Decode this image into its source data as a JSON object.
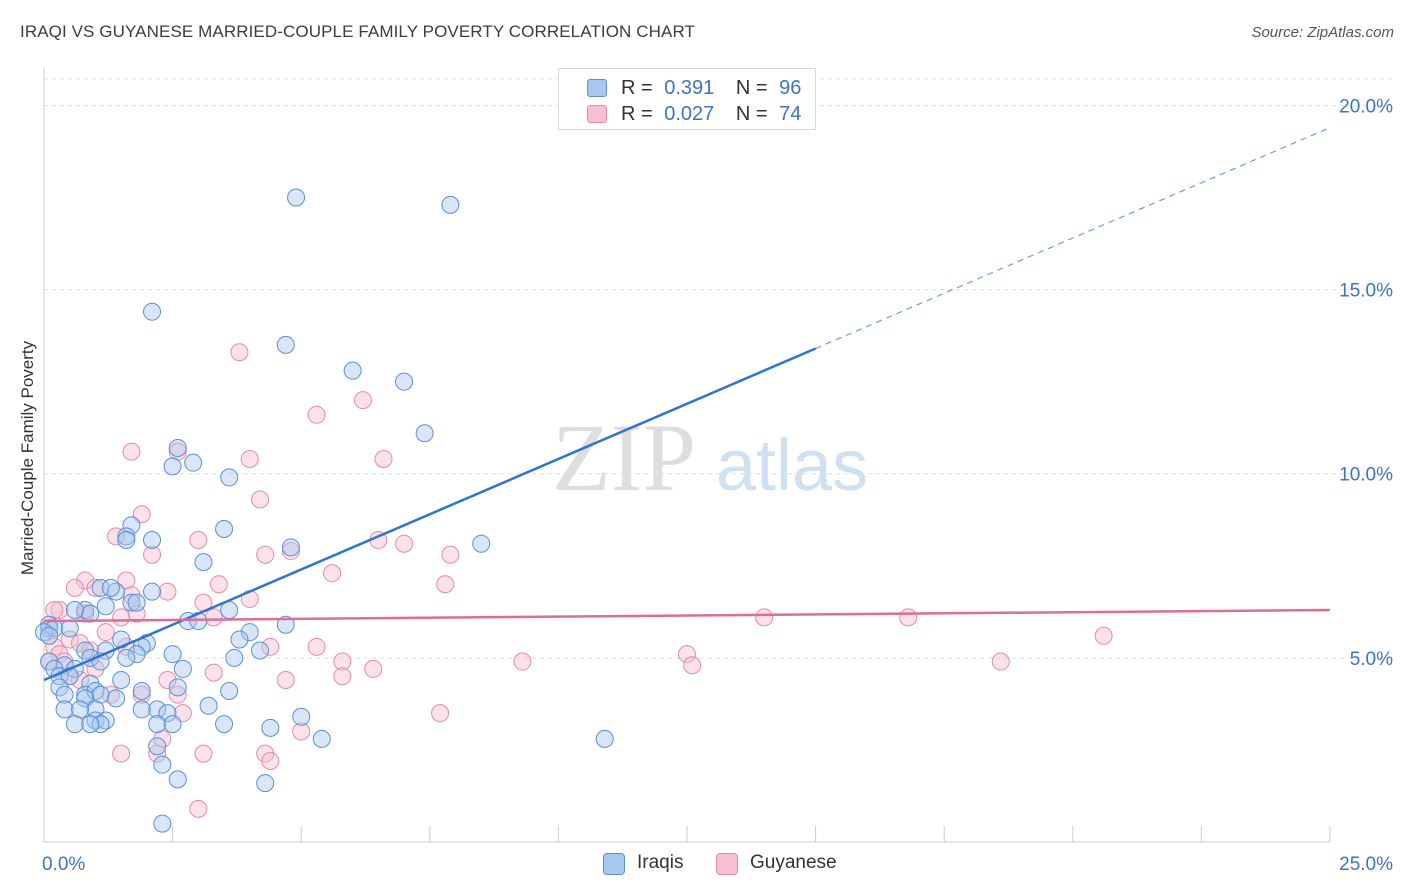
{
  "title": "IRAQI VS GUYANESE MARRIED-COUPLE FAMILY POVERTY CORRELATION CHART",
  "source": "Source: ZipAtlas.com",
  "watermark": {
    "zip": "ZIP",
    "atlas": "atlas"
  },
  "legend": {
    "iraqis": {
      "r_label": "R =",
      "r_value": "0.391",
      "n_label": "N =",
      "n_value": "96"
    },
    "guyanese": {
      "r_label": "R =",
      "r_value": "0.027",
      "n_label": "N =",
      "n_value": "74"
    }
  },
  "bottom_legend": {
    "iraqis": "Iraqis",
    "guyanese": "Guyanese"
  },
  "colors": {
    "iraqis_fill": "#a9c8f0",
    "iraqis_stroke": "#5b8fd6",
    "iraqis_line": "#2f74d0",
    "guyanese_fill": "#f7bfd0",
    "guyanese_stroke": "#e58aa8",
    "guyanese_line": "#e36a95",
    "grid": "#dddddd",
    "tick_label": "#3f72c4"
  },
  "chart_data": {
    "type": "scatter",
    "title": "IRAQI VS GUYANESE MARRIED-COUPLE FAMILY POVERTY CORRELATION CHART",
    "ylabel": "Married-Couple Family Poverty",
    "xlabel": "",
    "xlim": [
      0,
      25
    ],
    "ylim": [
      0,
      20.8
    ],
    "x_tick_labels": [
      {
        "value": 0,
        "label": "0.0%"
      },
      {
        "value": 25,
        "label": "25.0%"
      }
    ],
    "y_tick_labels": [
      {
        "value": 5,
        "label": "5.0%"
      },
      {
        "value": 10,
        "label": "10.0%"
      },
      {
        "value": 15,
        "label": "15.0%"
      },
      {
        "value": 20,
        "label": "20.0%"
      }
    ],
    "grid": true,
    "series": [
      {
        "name": "Iraqis",
        "points": [
          [
            4.9,
            17.5
          ],
          [
            7.9,
            17.3
          ],
          [
            2.1,
            14.4
          ],
          [
            4.7,
            13.5
          ],
          [
            6.0,
            12.8
          ],
          [
            7.0,
            12.5
          ],
          [
            7.4,
            11.1
          ],
          [
            2.6,
            10.7
          ],
          [
            2.5,
            10.2
          ],
          [
            2.9,
            10.3
          ],
          [
            3.6,
            9.9
          ],
          [
            1.7,
            8.6
          ],
          [
            3.5,
            8.5
          ],
          [
            1.6,
            8.3
          ],
          [
            2.1,
            8.2
          ],
          [
            1.6,
            8.2
          ],
          [
            4.8,
            8.0
          ],
          [
            8.5,
            8.1
          ],
          [
            3.1,
            7.6
          ],
          [
            1.1,
            6.9
          ],
          [
            2.1,
            6.8
          ],
          [
            1.4,
            6.8
          ],
          [
            1.7,
            6.5
          ],
          [
            1.8,
            6.5
          ],
          [
            1.2,
            6.4
          ],
          [
            0.8,
            6.3
          ],
          [
            0.9,
            6.2
          ],
          [
            3.6,
            6.3
          ],
          [
            2.8,
            6.0
          ],
          [
            4.7,
            5.9
          ],
          [
            0.1,
            5.9
          ],
          [
            0.1,
            5.8
          ],
          [
            0.2,
            5.8
          ],
          [
            0.5,
            5.8
          ],
          [
            0.0,
            5.7
          ],
          [
            4.0,
            5.7
          ],
          [
            0.1,
            5.6
          ],
          [
            1.5,
            5.5
          ],
          [
            3.8,
            5.5
          ],
          [
            2.0,
            5.4
          ],
          [
            1.9,
            5.3
          ],
          [
            0.8,
            5.2
          ],
          [
            1.2,
            5.2
          ],
          [
            4.2,
            5.2
          ],
          [
            1.8,
            5.1
          ],
          [
            2.5,
            5.1
          ],
          [
            1.6,
            5.0
          ],
          [
            0.9,
            5.0
          ],
          [
            1.1,
            4.9
          ],
          [
            3.7,
            5.0
          ],
          [
            0.1,
            4.9
          ],
          [
            0.4,
            4.8
          ],
          [
            0.6,
            4.7
          ],
          [
            0.2,
            4.7
          ],
          [
            2.7,
            4.7
          ],
          [
            0.3,
            4.5
          ],
          [
            0.5,
            4.5
          ],
          [
            1.5,
            4.4
          ],
          [
            0.3,
            4.2
          ],
          [
            2.6,
            4.2
          ],
          [
            0.9,
            4.3
          ],
          [
            3.6,
            4.1
          ],
          [
            0.4,
            4.0
          ],
          [
            1.9,
            4.1
          ],
          [
            0.8,
            4.0
          ],
          [
            1.0,
            4.1
          ],
          [
            1.1,
            4.0
          ],
          [
            0.8,
            3.9
          ],
          [
            1.4,
            3.9
          ],
          [
            2.2,
            3.6
          ],
          [
            3.2,
            3.7
          ],
          [
            1.0,
            3.6
          ],
          [
            0.4,
            3.6
          ],
          [
            0.7,
            3.6
          ],
          [
            1.9,
            3.6
          ],
          [
            2.4,
            3.5
          ],
          [
            1.0,
            3.3
          ],
          [
            0.6,
            3.2
          ],
          [
            1.2,
            3.3
          ],
          [
            1.1,
            3.2
          ],
          [
            0.9,
            3.2
          ],
          [
            2.2,
            3.2
          ],
          [
            2.5,
            3.2
          ],
          [
            3.5,
            3.2
          ],
          [
            4.4,
            3.1
          ],
          [
            5.0,
            3.4
          ],
          [
            5.4,
            2.8
          ],
          [
            10.9,
            2.8
          ],
          [
            2.2,
            2.6
          ],
          [
            2.3,
            2.1
          ],
          [
            2.6,
            1.7
          ],
          [
            4.3,
            1.6
          ],
          [
            2.3,
            0.5
          ],
          [
            1.3,
            6.9
          ],
          [
            3.0,
            6.0
          ],
          [
            0.6,
            6.3
          ]
        ]
      },
      {
        "name": "Guyanese",
        "points": [
          [
            3.8,
            13.3
          ],
          [
            6.2,
            12.0
          ],
          [
            5.3,
            11.6
          ],
          [
            1.7,
            10.6
          ],
          [
            2.6,
            10.6
          ],
          [
            4.0,
            10.4
          ],
          [
            6.6,
            10.4
          ],
          [
            4.2,
            9.3
          ],
          [
            1.9,
            8.9
          ],
          [
            1.4,
            8.3
          ],
          [
            3.0,
            8.2
          ],
          [
            6.5,
            8.2
          ],
          [
            7.0,
            8.1
          ],
          [
            4.8,
            7.9
          ],
          [
            2.1,
            7.8
          ],
          [
            4.3,
            7.8
          ],
          [
            7.9,
            7.8
          ],
          [
            5.6,
            7.3
          ],
          [
            0.8,
            7.1
          ],
          [
            1.0,
            6.9
          ],
          [
            3.4,
            7.0
          ],
          [
            7.8,
            7.0
          ],
          [
            1.6,
            7.1
          ],
          [
            2.4,
            6.8
          ],
          [
            1.7,
            6.7
          ],
          [
            3.1,
            6.5
          ],
          [
            0.3,
            6.3
          ],
          [
            4.0,
            6.6
          ],
          [
            1.8,
            6.2
          ],
          [
            0.8,
            6.2
          ],
          [
            1.5,
            6.1
          ],
          [
            3.3,
            6.1
          ],
          [
            14.0,
            6.1
          ],
          [
            16.8,
            6.1
          ],
          [
            1.2,
            5.7
          ],
          [
            20.6,
            5.6
          ],
          [
            0.5,
            5.5
          ],
          [
            0.7,
            5.4
          ],
          [
            0.2,
            5.3
          ],
          [
            1.6,
            5.3
          ],
          [
            4.4,
            5.3
          ],
          [
            5.3,
            5.3
          ],
          [
            0.9,
            5.2
          ],
          [
            0.3,
            5.1
          ],
          [
            12.5,
            5.1
          ],
          [
            0.1,
            4.9
          ],
          [
            0.4,
            4.9
          ],
          [
            5.8,
            4.9
          ],
          [
            9.3,
            4.9
          ],
          [
            12.6,
            4.8
          ],
          [
            18.6,
            4.9
          ],
          [
            6.4,
            4.7
          ],
          [
            1.0,
            4.7
          ],
          [
            3.3,
            4.6
          ],
          [
            0.5,
            4.5
          ],
          [
            0.7,
            4.4
          ],
          [
            5.8,
            4.5
          ],
          [
            2.4,
            4.4
          ],
          [
            4.7,
            4.4
          ],
          [
            1.9,
            4.0
          ],
          [
            1.3,
            4.0
          ],
          [
            2.6,
            4.0
          ],
          [
            2.7,
            3.5
          ],
          [
            7.7,
            3.5
          ],
          [
            5.0,
            3.0
          ],
          [
            2.3,
            2.8
          ],
          [
            2.2,
            2.4
          ],
          [
            1.5,
            2.4
          ],
          [
            3.1,
            2.4
          ],
          [
            4.3,
            2.4
          ],
          [
            4.4,
            2.2
          ],
          [
            3.0,
            0.9
          ],
          [
            0.2,
            6.3
          ],
          [
            0.6,
            6.9
          ]
        ]
      }
    ],
    "trend_lines": [
      {
        "series": "Iraqis",
        "solid_from": [
          0,
          4.4
        ],
        "solid_to": [
          15,
          13.4
        ],
        "dashed_to": [
          25,
          19.4
        ]
      },
      {
        "series": "Guyanese",
        "from": [
          0,
          6.0
        ],
        "to": [
          25,
          6.3
        ]
      }
    ]
  }
}
